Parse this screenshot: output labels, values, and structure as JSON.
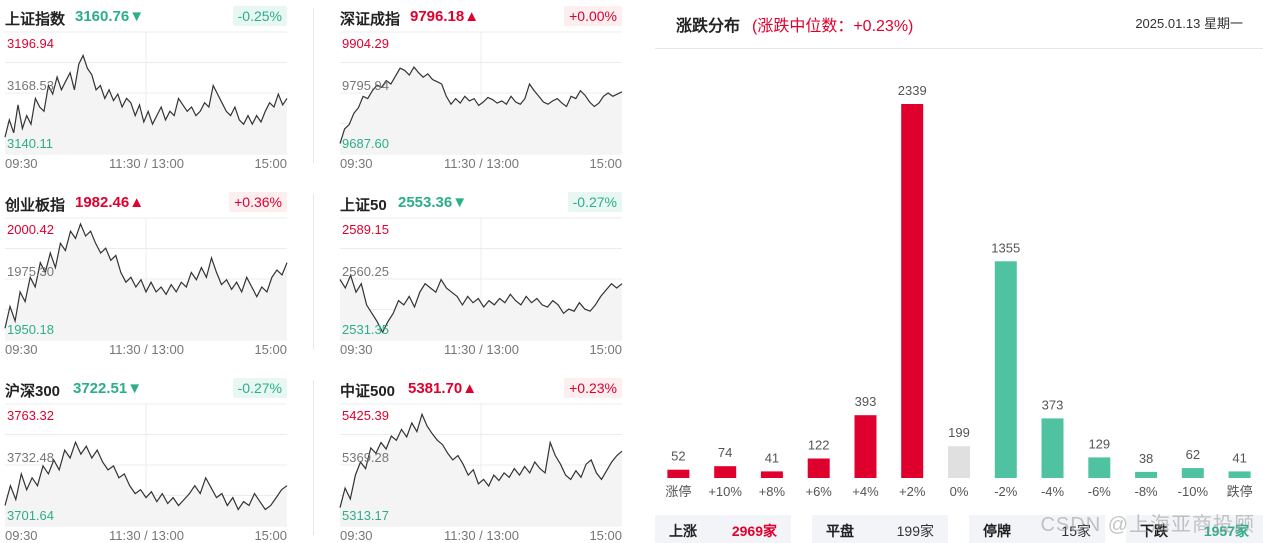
{
  "indices": [
    {
      "name": "上证指数",
      "price": "3160.76",
      "arrow": "▼",
      "dir": "down",
      "change": "-0.25%",
      "y_top": "3196.94",
      "y_mid": "3168.53",
      "y_bot": "3140.11",
      "series": [
        3148,
        3156,
        3150,
        3163,
        3152,
        3158,
        3154,
        3166,
        3162,
        3160,
        3172,
        3168,
        3176,
        3170,
        3174,
        3178,
        3170,
        3182,
        3186,
        3180,
        3177,
        3170,
        3172,
        3166,
        3170,
        3165,
        3168,
        3162,
        3166,
        3164,
        3158,
        3163,
        3155,
        3160,
        3154,
        3158,
        3162,
        3156,
        3160,
        3158,
        3166,
        3163,
        3160,
        3162,
        3158,
        3160,
        3164,
        3162,
        3172,
        3168,
        3164,
        3160,
        3158,
        3162,
        3156,
        3154,
        3158,
        3154,
        3158,
        3155,
        3160,
        3164,
        3162,
        3168,
        3163,
        3166
      ]
    },
    {
      "name": "深证成指",
      "price": "9796.18",
      "arrow": "▲",
      "dir": "up",
      "change": "+0.00%",
      "y_top": "9904.29",
      "y_mid": "9795.94",
      "y_bot": "9687.60",
      "series": [
        9706,
        9732,
        9740,
        9760,
        9770,
        9790,
        9786,
        9800,
        9810,
        9806,
        9818,
        9812,
        9826,
        9840,
        9836,
        9828,
        9842,
        9832,
        9824,
        9830,
        9820,
        9816,
        9812,
        9790,
        9776,
        9786,
        9778,
        9790,
        9782,
        9786,
        9774,
        9780,
        9788,
        9784,
        9778,
        9782,
        9776,
        9790,
        9780,
        9776,
        9786,
        9812,
        9800,
        9790,
        9780,
        9776,
        9782,
        9786,
        9778,
        9772,
        9790,
        9786,
        9800,
        9792,
        9780,
        9772,
        9778,
        9790,
        9796,
        9790,
        9794,
        9798
      ]
    },
    {
      "name": "创业板指",
      "price": "1982.46",
      "arrow": "▲",
      "dir": "up",
      "change": "+0.36%",
      "y_top": "2000.42",
      "y_mid": "1975.30",
      "y_bot": "1950.18",
      "series": [
        1955,
        1964,
        1958,
        1970,
        1966,
        1976,
        1972,
        1982,
        1978,
        1986,
        1980,
        1990,
        1987,
        1995,
        1992,
        1998,
        1993,
        1995,
        1990,
        1986,
        1988,
        1983,
        1985,
        1978,
        1974,
        1976,
        1972,
        1975,
        1970,
        1974,
        1970,
        1972,
        1969,
        1973,
        1970,
        1974,
        1972,
        1978,
        1975,
        1980,
        1976,
        1984,
        1978,
        1973,
        1975,
        1971,
        1974,
        1970,
        1976,
        1972,
        1968,
        1972,
        1970,
        1976,
        1979,
        1977,
        1982
      ]
    },
    {
      "name": "上证50",
      "price": "2553.36",
      "arrow": "▼",
      "dir": "down",
      "change": "-0.27%",
      "y_top": "2589.15",
      "y_mid": "2560.25",
      "y_bot": "2531.35",
      "series": [
        2560,
        2556,
        2562,
        2554,
        2558,
        2548,
        2544,
        2540,
        2535,
        2540,
        2544,
        2550,
        2548,
        2552,
        2547,
        2554,
        2558,
        2556,
        2554,
        2560,
        2556,
        2554,
        2552,
        2548,
        2552,
        2549,
        2551,
        2547,
        2550,
        2548,
        2551,
        2549,
        2553,
        2550,
        2548,
        2552,
        2549,
        2551,
        2548,
        2547,
        2550,
        2548,
        2544,
        2546,
        2545,
        2549,
        2546,
        2545,
        2548,
        2552,
        2555,
        2558,
        2556,
        2558
      ]
    },
    {
      "name": "沪深300",
      "price": "3722.51",
      "arrow": "▼",
      "dir": "down",
      "change": "-0.27%",
      "y_top": "3763.32",
      "y_mid": "3732.48",
      "y_bot": "3701.64",
      "series": [
        3712,
        3722,
        3715,
        3728,
        3720,
        3726,
        3722,
        3732,
        3728,
        3735,
        3730,
        3740,
        3736,
        3744,
        3738,
        3742,
        3736,
        3740,
        3734,
        3730,
        3732,
        3726,
        3728,
        3722,
        3718,
        3720,
        3716,
        3719,
        3714,
        3718,
        3713,
        3716,
        3712,
        3715,
        3718,
        3722,
        3718,
        3726,
        3721,
        3716,
        3718,
        3712,
        3716,
        3710,
        3714,
        3712,
        3718,
        3714,
        3710,
        3712,
        3716,
        3720,
        3722
      ]
    },
    {
      "name": "中证500",
      "price": "5381.70",
      "arrow": "▲",
      "dir": "up",
      "change": "+0.23%",
      "y_top": "5425.39",
      "y_mid": "5369.28",
      "y_bot": "5313.17",
      "series": [
        5330,
        5348,
        5338,
        5360,
        5372,
        5366,
        5385,
        5380,
        5390,
        5384,
        5396,
        5392,
        5402,
        5395,
        5408,
        5400,
        5416,
        5405,
        5398,
        5392,
        5388,
        5380,
        5374,
        5378,
        5370,
        5360,
        5365,
        5352,
        5356,
        5350,
        5360,
        5355,
        5362,
        5358,
        5366,
        5360,
        5368,
        5362,
        5372,
        5366,
        5362,
        5390,
        5378,
        5370,
        5360,
        5356,
        5364,
        5358,
        5370,
        5374,
        5362,
        5356,
        5364,
        5372,
        5378,
        5382
      ]
    }
  ],
  "axis_times": {
    "start": "09:30",
    "mid": "11:30 / 13:00",
    "end": "15:00"
  },
  "distribution": {
    "title": "涨跌分布",
    "subtitle": "(涨跌中位数：+0.23%)",
    "date": "2025.01.13 星期一",
    "colors": {
      "up": "#e0002e",
      "flat": "#e0e0e0",
      "down": "#4fc3a1"
    },
    "chart_data": {
      "type": "bar",
      "categories": [
        "涨停",
        "+10%",
        "+8%",
        "+6%",
        "+4%",
        "+2%",
        "0%",
        "-2%",
        "-4%",
        "-6%",
        "-8%",
        "-10%",
        "跌停"
      ],
      "values": [
        52,
        74,
        41,
        122,
        393,
        2339,
        199,
        1355,
        373,
        129,
        38,
        62,
        41
      ],
      "kinds": [
        "up",
        "up",
        "up",
        "up",
        "up",
        "up",
        "flat",
        "down",
        "down",
        "down",
        "down",
        "down",
        "down"
      ]
    },
    "summary": [
      {
        "label": "上涨",
        "value": "2969家",
        "kind": "up"
      },
      {
        "label": "平盘",
        "value": "199家",
        "kind": "flat"
      },
      {
        "label": "停牌",
        "value": "15家",
        "kind": "flat"
      },
      {
        "label": "下跌",
        "value": "1957家",
        "kind": "down"
      }
    ],
    "watermark": "CSDN @上海亚商投顾"
  }
}
